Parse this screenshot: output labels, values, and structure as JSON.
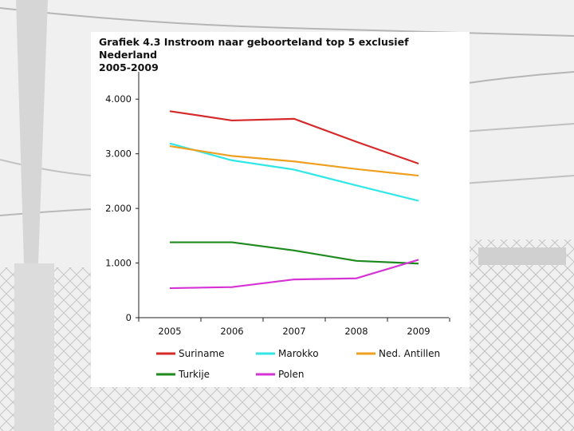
{
  "colors": {
    "Suriname": "#d62a2a",
    "Marokko": "#33e6e6",
    "Ned. Antillen": "#f0a020",
    "Turkije": "#1e8a1e",
    "Polen": "#d633d6"
  },
  "chart_data": {
    "type": "line",
    "title_line1": "Grafiek 4.3 Instroom naar geboorteland top 5 exclusief Nederland",
    "title_line2": "2005-2009",
    "x": [
      "2005",
      "2006",
      "2007",
      "2008",
      "2009"
    ],
    "ylim": [
      0,
      4500
    ],
    "yticks": [
      {
        "value": 0,
        "label": "0"
      },
      {
        "value": 1000,
        "label": "1.000"
      },
      {
        "value": 2000,
        "label": "2.000"
      },
      {
        "value": 3000,
        "label": "3.000"
      },
      {
        "value": 4000,
        "label": "4.000"
      }
    ],
    "grid": false,
    "legend_position": "bottom",
    "series": [
      {
        "name": "Suriname",
        "values": [
          3780,
          3610,
          3640,
          3220,
          2820
        ]
      },
      {
        "name": "Marokko",
        "values": [
          3190,
          2880,
          2710,
          2420,
          2140
        ]
      },
      {
        "name": "Ned. Antillen",
        "values": [
          3140,
          2960,
          2860,
          2720,
          2600
        ]
      },
      {
        "name": "Turkije",
        "values": [
          1380,
          1380,
          1230,
          1040,
          990
        ]
      },
      {
        "name": "Polen",
        "values": [
          540,
          560,
          700,
          720,
          1060
        ]
      }
    ]
  }
}
